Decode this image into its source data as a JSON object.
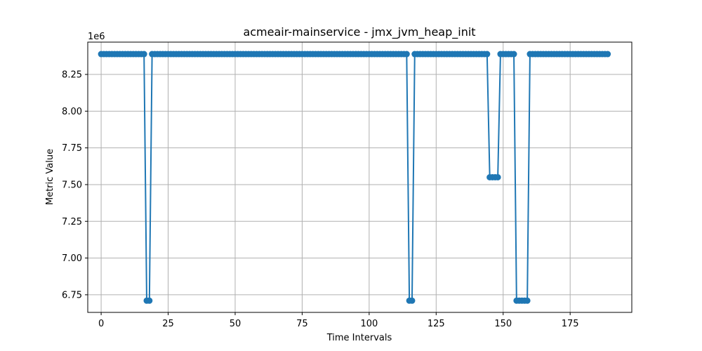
{
  "chart_data": {
    "type": "line",
    "title": "acmeair-mainservice - jmx_jvm_heap_init",
    "xlabel": "Time Intervals",
    "ylabel": "Metric Value",
    "y_multiplier_label": "1e6",
    "xlim": [
      -5,
      198
    ],
    "ylim": [
      6.63,
      8.47
    ],
    "x_ticks": [
      0,
      25,
      50,
      75,
      100,
      125,
      150,
      175
    ],
    "x_tick_labels": [
      "0",
      "25",
      "50",
      "75",
      "100",
      "125",
      "150",
      "175"
    ],
    "y_ticks": [
      6.75,
      7.0,
      7.25,
      7.5,
      7.75,
      8.0,
      8.25
    ],
    "y_tick_labels": [
      "6.75",
      "7.00",
      "7.25",
      "7.50",
      "7.75",
      "8.00",
      "8.25"
    ],
    "grid": true,
    "series_color": "#1f77b4",
    "levels": {
      "high": 8.388608,
      "mid": 7.55,
      "low": 6.71
    },
    "segments": [
      {
        "from": 0,
        "to": 16,
        "level": "high"
      },
      {
        "from": 17,
        "to": 18,
        "level": "low"
      },
      {
        "from": 19,
        "to": 114,
        "level": "high"
      },
      {
        "from": 115,
        "to": 116,
        "level": "low"
      },
      {
        "from": 117,
        "to": 144,
        "level": "high"
      },
      {
        "from": 145,
        "to": 148,
        "level": "mid"
      },
      {
        "from": 149,
        "to": 154,
        "level": "high"
      },
      {
        "from": 155,
        "to": 159,
        "level": "low"
      },
      {
        "from": 160,
        "to": 189,
        "level": "high"
      }
    ]
  }
}
